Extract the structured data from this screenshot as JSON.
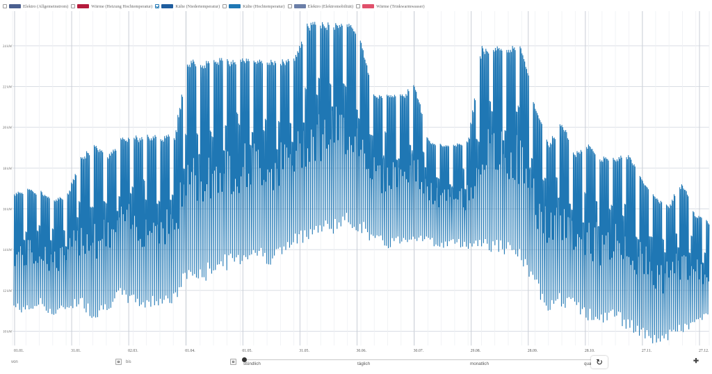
{
  "legend": [
    {
      "label": "Elektro (Allgemeinstrom)",
      "color": "#4a5f8f",
      "checked": false
    },
    {
      "label": "Wärme (Heizung Hochtemperatur)",
      "color": "#b51b3c",
      "checked": false
    },
    {
      "label": "Kälte (Niedertemperatur)",
      "color": "#1f5d9e",
      "checked": true
    },
    {
      "label": "Kälte (Hochtemperatur)",
      "color": "#1f77b4",
      "checked": false
    },
    {
      "label": "Elektro (Elektromobilität)",
      "color": "#6b7fa8",
      "checked": false
    },
    {
      "label": "Wärme (Trinkwarmwasser)",
      "color": "#e0506b",
      "checked": false
    }
  ],
  "chart_data": {
    "type": "line",
    "ylim": [
      9.3,
      25.7
    ],
    "yticks": [
      10,
      12,
      14,
      16,
      18,
      20,
      22,
      24
    ],
    "ytick_labels": [
      "10 kW",
      "12 kW",
      "14 kW",
      "16 kW",
      "18 kW",
      "20 kW",
      "22 kW",
      "24 kW"
    ],
    "xtick_labels": [
      "01.01.",
      "31.01.",
      "02.03.",
      "01.04.",
      "01.05.",
      "31.05.",
      "30.06.",
      "30.07.",
      "29.08.",
      "28.09.",
      "28.10.",
      "27.11.",
      "27.12."
    ],
    "line_color": "#1f77b4",
    "grid": true,
    "series": [
      {
        "values": [
          {
            "date": "01.01.",
            "min": 11.0,
            "max": 16.8
          },
          {
            "date": "08.01.",
            "min": 10.8,
            "max": 17.0
          },
          {
            "date": "15.01.",
            "min": 11.2,
            "max": 16.9
          },
          {
            "date": "22.01.",
            "min": 10.6,
            "max": 16.5
          },
          {
            "date": "29.01.",
            "min": 11.0,
            "max": 16.8
          },
          {
            "date": "05.02.",
            "min": 11.2,
            "max": 18.6
          },
          {
            "date": "12.02.",
            "min": 10.5,
            "max": 19.2
          },
          {
            "date": "19.02.",
            "min": 11.0,
            "max": 18.6
          },
          {
            "date": "26.02.",
            "min": 11.5,
            "max": 19.6
          },
          {
            "date": "05.03.",
            "min": 11.2,
            "max": 19.6
          },
          {
            "date": "12.03.",
            "min": 11.0,
            "max": 19.7
          },
          {
            "date": "19.03.",
            "min": 11.3,
            "max": 19.6
          },
          {
            "date": "26.03.",
            "min": 11.2,
            "max": 19.7
          },
          {
            "date": "01.04.",
            "min": 12.5,
            "max": 23.4
          },
          {
            "date": "08.04.",
            "min": 12.2,
            "max": 23.3
          },
          {
            "date": "15.04.",
            "min": 12.8,
            "max": 23.4
          },
          {
            "date": "22.04.",
            "min": 13.0,
            "max": 23.4
          },
          {
            "date": "29.04.",
            "min": 13.2,
            "max": 23.4
          },
          {
            "date": "06.05.",
            "min": 13.6,
            "max": 23.4
          },
          {
            "date": "13.05.",
            "min": 13.2,
            "max": 23.4
          },
          {
            "date": "20.05.",
            "min": 13.5,
            "max": 23.4
          },
          {
            "date": "27.05.",
            "min": 14.0,
            "max": 23.4
          },
          {
            "date": "03.06.",
            "min": 14.5,
            "max": 25.2
          },
          {
            "date": "10.06.",
            "min": 14.6,
            "max": 25.2
          },
          {
            "date": "17.06.",
            "min": 14.8,
            "max": 25.2
          },
          {
            "date": "24.06.",
            "min": 15.0,
            "max": 25.3
          },
          {
            "date": "01.07.",
            "min": 14.8,
            "max": 24.2
          },
          {
            "date": "08.07.",
            "min": 14.2,
            "max": 21.6
          },
          {
            "date": "15.07.",
            "min": 14.0,
            "max": 21.8
          },
          {
            "date": "22.07.",
            "min": 14.2,
            "max": 21.6
          },
          {
            "date": "29.07.",
            "min": 14.4,
            "max": 22.2
          },
          {
            "date": "05.08.",
            "min": 14.3,
            "max": 19.4
          },
          {
            "date": "12.08.",
            "min": 14.0,
            "max": 19.2
          },
          {
            "date": "19.08.",
            "min": 14.2,
            "max": 19.2
          },
          {
            "date": "26.08.",
            "min": 14.0,
            "max": 19.4
          },
          {
            "date": "02.09.",
            "min": 14.0,
            "max": 24.0
          },
          {
            "date": "09.09.",
            "min": 13.8,
            "max": 24.0
          },
          {
            "date": "16.09.",
            "min": 13.6,
            "max": 24.0
          },
          {
            "date": "23.09.",
            "min": 13.2,
            "max": 24.0
          },
          {
            "date": "30.09.",
            "min": 12.0,
            "max": 21.2
          },
          {
            "date": "07.10.",
            "min": 11.0,
            "max": 19.2
          },
          {
            "date": "14.10.",
            "min": 11.2,
            "max": 20.4
          },
          {
            "date": "21.10.",
            "min": 11.0,
            "max": 18.8
          },
          {
            "date": "28.10.",
            "min": 10.5,
            "max": 19.2
          },
          {
            "date": "04.11.",
            "min": 10.2,
            "max": 18.6
          },
          {
            "date": "11.11.",
            "min": 10.6,
            "max": 18.6
          },
          {
            "date": "18.11.",
            "min": 10.0,
            "max": 18.7
          },
          {
            "date": "25.11.",
            "min": 9.6,
            "max": 17.6
          },
          {
            "date": "02.12.",
            "min": 9.3,
            "max": 16.6
          },
          {
            "date": "09.12.",
            "min": 9.5,
            "max": 16.2
          },
          {
            "date": "16.12.",
            "min": 9.8,
            "max": 17.4
          },
          {
            "date": "23.12.",
            "min": 10.2,
            "max": 15.8
          },
          {
            "date": "31.12.",
            "min": 10.6,
            "max": 15.4
          }
        ]
      }
    ]
  },
  "controls": {
    "from_label": "von",
    "to_label": "bis",
    "resolution_options": [
      "stündlich",
      "täglich",
      "monatlich",
      "quartal"
    ]
  }
}
